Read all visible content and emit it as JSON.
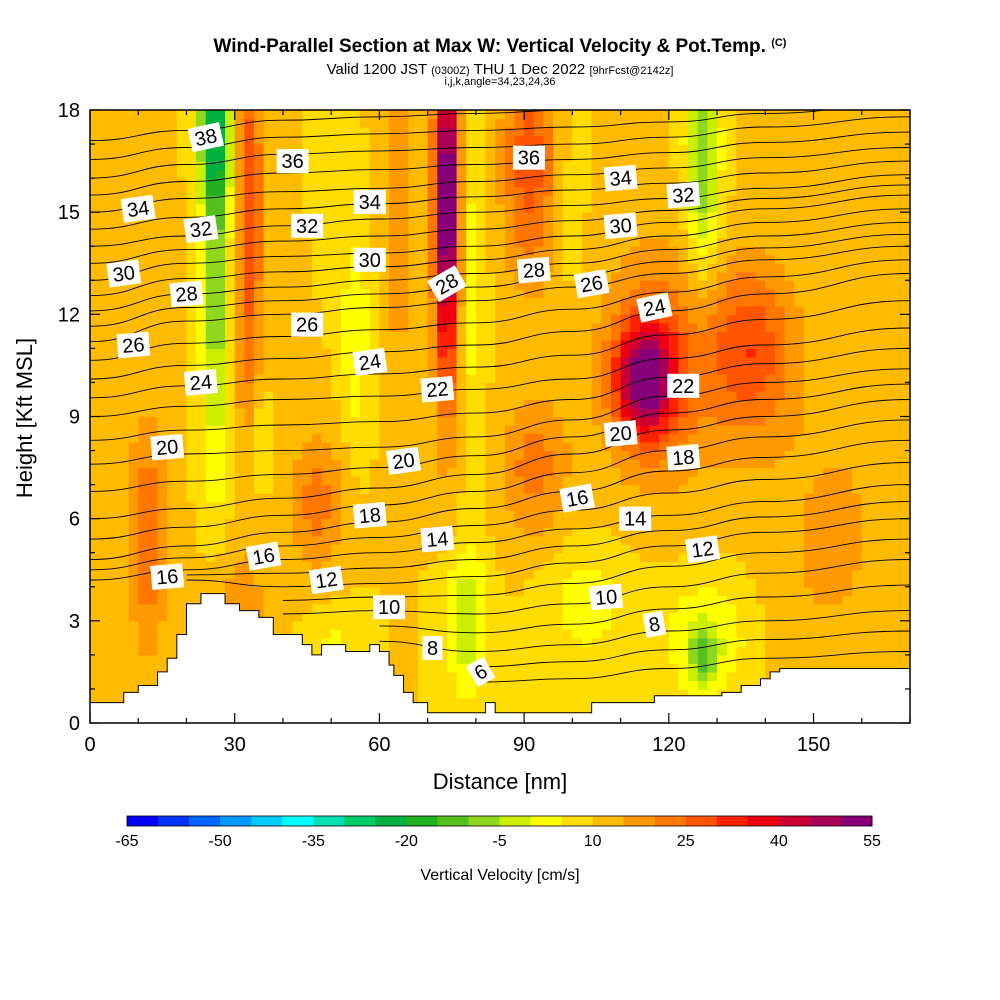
{
  "header": {
    "title": "Wind-Parallel Section at Max W: Vertical Velocity & Pot.Temp.",
    "copyright": "(C)",
    "subtitle_main_a": "Valid 1200 JST",
    "subtitle_small_a": "(0300Z)",
    "subtitle_main_b": "THU 1 Dec 2022",
    "subtitle_small_b": "[9hrFcst@2142z]",
    "indices": "i,j,k,angle=34,23,24,36"
  },
  "chart_data": {
    "type": "heatmap",
    "xlabel": "Distance [nm]",
    "ylabel": "Height [Kft MSL]",
    "xlim": [
      0,
      170
    ],
    "ylim": [
      0,
      18
    ],
    "x_ticks": [
      0,
      30,
      60,
      90,
      120,
      150
    ],
    "y_ticks": [
      0,
      3,
      6,
      9,
      12,
      15,
      18
    ],
    "grid": false,
    "colorbar": {
      "title": "Vertical Velocity [cm/s]",
      "placement": "bottom",
      "min": -65,
      "max": 55,
      "step": 5,
      "tick_labels": [
        "-65",
        "-50",
        "-35",
        "-20",
        "-5",
        "10",
        "25",
        "40",
        "55"
      ],
      "colors": [
        "#0000ff",
        "#0033ff",
        "#0066ff",
        "#0099ff",
        "#00ccff",
        "#00ffff",
        "#00e0b0",
        "#00cc66",
        "#00b040",
        "#20b020",
        "#55c020",
        "#90d820",
        "#ccee00",
        "#ffff00",
        "#ffdd00",
        "#ffbb00",
        "#ff9900",
        "#ff7700",
        "#ff5500",
        "#ff2200",
        "#ee0011",
        "#cc0033",
        "#aa0055",
        "#880077"
      ]
    },
    "background_w": 10,
    "w_features": [
      {
        "x": 26,
        "y": 13.5,
        "sx": 2.0,
        "sy": 4.5,
        "w": -20
      },
      {
        "x": 26,
        "y": 17.5,
        "sx": 2.5,
        "sy": 1.5,
        "w": -25
      },
      {
        "x": 33,
        "y": 15.0,
        "sx": 2.0,
        "sy": 5.0,
        "w": 18
      },
      {
        "x": 35,
        "y": 8.3,
        "sx": 1.5,
        "sy": 1.2,
        "w": -8
      },
      {
        "x": 55,
        "y": 11.5,
        "sx": 2.0,
        "sy": 2.2,
        "w": -10
      },
      {
        "x": 64,
        "y": 15.0,
        "sx": 2.5,
        "sy": 4.0,
        "w": 8
      },
      {
        "x": 74,
        "y": 15.5,
        "sx": 1.8,
        "sy": 3.0,
        "w": 50
      },
      {
        "x": 74,
        "y": 10.5,
        "sx": 2.2,
        "sy": 3.0,
        "w": 8
      },
      {
        "x": 79,
        "y": 13.0,
        "sx": 2.0,
        "sy": 3.5,
        "w": -8
      },
      {
        "x": 91,
        "y": 16.5,
        "sx": 4.0,
        "sy": 2.5,
        "w": 18
      },
      {
        "x": 100,
        "y": 15.5,
        "sx": 2.0,
        "sy": 3.0,
        "w": -3
      },
      {
        "x": 115,
        "y": 10.1,
        "sx": 4.0,
        "sy": 1.1,
        "w": 38
      },
      {
        "x": 118,
        "y": 10.5,
        "sx": 9.0,
        "sy": 2.5,
        "w": 15
      },
      {
        "x": 137,
        "y": 11.0,
        "sx": 6.0,
        "sy": 1.8,
        "w": 18
      },
      {
        "x": 127,
        "y": 16.5,
        "sx": 2.5,
        "sy": 2.5,
        "w": -20
      },
      {
        "x": 12,
        "y": 5.5,
        "sx": 3.0,
        "sy": 2.5,
        "w": 14
      },
      {
        "x": 47,
        "y": 6.5,
        "sx": 4.0,
        "sy": 1.5,
        "w": 12
      },
      {
        "x": 92,
        "y": 7.5,
        "sx": 5.0,
        "sy": 1.5,
        "w": 12
      },
      {
        "x": 78,
        "y": 3.0,
        "sx": 3.0,
        "sy": 1.5,
        "w": -15
      },
      {
        "x": 103,
        "y": 3.5,
        "sx": 6.0,
        "sy": 1.2,
        "w": -8
      },
      {
        "x": 128,
        "y": 2.5,
        "sx": 7.0,
        "sy": 1.3,
        "w": -10
      },
      {
        "x": 127,
        "y": 2.0,
        "sx": 2.0,
        "sy": 0.6,
        "w": -15
      },
      {
        "x": 50,
        "y": 2.3,
        "sx": 4.0,
        "sy": 0.8,
        "w": -6
      },
      {
        "x": 30,
        "y": 3.0,
        "sx": 5.0,
        "sy": 1.5,
        "w": 8
      },
      {
        "x": 160,
        "y": 10.0,
        "sx": 10.0,
        "sy": 8.0,
        "w": 3
      },
      {
        "x": 5,
        "y": 16.0,
        "sx": 6.0,
        "sy": 3.0,
        "w": 5
      },
      {
        "x": 150,
        "y": 5.0,
        "sx": 10.0,
        "sy": 3.0,
        "w": 4
      }
    ],
    "terrain": [
      [
        0,
        0.6
      ],
      [
        7,
        0.6
      ],
      [
        7,
        0.9
      ],
      [
        10,
        0.9
      ],
      [
        10,
        1.1
      ],
      [
        14,
        1.1
      ],
      [
        14,
        1.5
      ],
      [
        16,
        1.5
      ],
      [
        16,
        1.9
      ],
      [
        18,
        1.9
      ],
      [
        18,
        2.6
      ],
      [
        20,
        2.6
      ],
      [
        20,
        3.5
      ],
      [
        23,
        3.5
      ],
      [
        23,
        3.8
      ],
      [
        28,
        3.8
      ],
      [
        28,
        3.5
      ],
      [
        31,
        3.5
      ],
      [
        31,
        3.3
      ],
      [
        35,
        3.3
      ],
      [
        35,
        3.1
      ],
      [
        38,
        3.1
      ],
      [
        38,
        2.6
      ],
      [
        44,
        2.6
      ],
      [
        44,
        2.3
      ],
      [
        46,
        2.3
      ],
      [
        46,
        2.0
      ],
      [
        48,
        2.0
      ],
      [
        48,
        2.3
      ],
      [
        53,
        2.3
      ],
      [
        53,
        2.1
      ],
      [
        58,
        2.1
      ],
      [
        58,
        2.3
      ],
      [
        60,
        2.3
      ],
      [
        60,
        2.1
      ],
      [
        62,
        2.1
      ],
      [
        62,
        1.7
      ],
      [
        63,
        1.7
      ],
      [
        63,
        1.4
      ],
      [
        65,
        1.4
      ],
      [
        65,
        0.9
      ],
      [
        67,
        0.9
      ],
      [
        67,
        0.6
      ],
      [
        70,
        0.6
      ],
      [
        70,
        0.3
      ],
      [
        82,
        0.3
      ],
      [
        82,
        0.6
      ],
      [
        84,
        0.6
      ],
      [
        84,
        0.3
      ],
      [
        104,
        0.3
      ],
      [
        104,
        0.6
      ],
      [
        117,
        0.6
      ],
      [
        117,
        0.8
      ],
      [
        131,
        0.8
      ],
      [
        131,
        0.9
      ],
      [
        135,
        0.9
      ],
      [
        135,
        1.1
      ],
      [
        139,
        1.1
      ],
      [
        139,
        1.3
      ],
      [
        141,
        1.3
      ],
      [
        141,
        1.5
      ],
      [
        143,
        1.5
      ],
      [
        143,
        1.6
      ],
      [
        170,
        1.6
      ]
    ],
    "contour_levels": [
      6,
      7,
      8,
      9,
      10,
      11,
      12,
      13,
      14,
      15,
      16,
      17,
      18,
      19,
      20,
      21,
      22,
      23,
      24,
      25,
      26,
      27,
      28,
      29,
      30,
      31,
      32,
      33,
      34,
      35,
      36,
      37,
      38
    ],
    "theta_anchors_x": [
      0,
      20,
      40,
      60,
      80,
      100,
      120,
      140,
      170
    ],
    "theta_height_ranges": [
      [
        [
          4.2,
          18.0
        ],
        [
          4.2,
          18.0
        ],
        [
          3.2,
          18.0
        ],
        [
          2.4,
          18.0
        ],
        [
          1.0,
          18.0
        ],
        [
          1.0,
          18.0
        ],
        [
          1.2,
          18.0
        ],
        [
          1.6,
          18.0
        ],
        [
          1.9,
          18.0
        ]
      ]
    ],
    "theta_profiles": [
      {
        "t": 6,
        "y": [
          null,
          null,
          null,
          null,
          1.2,
          1.3,
          1.6,
          1.9,
          2.1
        ]
      },
      {
        "t": 8,
        "y": [
          null,
          null,
          null,
          2.4,
          2.1,
          2.3,
          2.7,
          3.0,
          3.3
        ]
      },
      {
        "t": 10,
        "y": [
          null,
          null,
          3.2,
          3.3,
          3.2,
          3.5,
          4.0,
          4.4,
          4.8
        ]
      },
      {
        "t": 12,
        "y": [
          null,
          4.2,
          4.0,
          4.1,
          4.3,
          4.7,
          5.2,
          5.6,
          6.0
        ]
      },
      {
        "t": 14,
        "y": [
          4.2,
          4.5,
          4.8,
          5.0,
          5.3,
          5.7,
          6.1,
          6.5,
          7.0
        ]
      },
      {
        "t": 16,
        "y": [
          4.8,
          5.2,
          5.6,
          5.9,
          6.3,
          6.8,
          7.4,
          7.8,
          8.3
        ]
      },
      {
        "t": 18,
        "y": [
          6.0,
          6.3,
          6.6,
          6.9,
          7.3,
          7.9,
          8.6,
          9.0,
          9.5
        ]
      },
      {
        "t": 20,
        "y": [
          7.6,
          7.9,
          8.0,
          8.1,
          8.4,
          8.9,
          9.6,
          10.0,
          10.4
        ]
      },
      {
        "t": 22,
        "y": [
          9.0,
          9.3,
          9.5,
          9.6,
          9.8,
          10.1,
          10.7,
          11.1,
          11.6
        ]
      },
      {
        "t": 24,
        "y": [
          10.1,
          10.5,
          10.7,
          10.9,
          11.1,
          11.5,
          12.1,
          12.6,
          13.2
        ]
      },
      {
        "t": 26,
        "y": [
          11.2,
          11.8,
          12.0,
          12.2,
          12.4,
          12.8,
          13.2,
          13.6,
          14.0
        ]
      },
      {
        "t": 28,
        "y": [
          12.1,
          12.6,
          12.8,
          13.0,
          13.2,
          13.5,
          13.9,
          14.3,
          14.7
        ]
      },
      {
        "t": 30,
        "y": [
          13.0,
          13.5,
          13.7,
          13.8,
          14.0,
          14.3,
          14.7,
          15.1,
          15.5
        ]
      },
      {
        "t": 32,
        "y": [
          14.0,
          14.3,
          14.6,
          14.8,
          15.0,
          15.2,
          15.4,
          15.7,
          16.1
        ]
      },
      {
        "t": 34,
        "y": [
          15.0,
          15.4,
          15.6,
          15.7,
          15.9,
          16.1,
          16.3,
          16.6,
          16.9
        ]
      },
      {
        "t": 36,
        "y": [
          16.0,
          16.4,
          16.7,
          16.8,
          16.9,
          17.0,
          17.2,
          17.5,
          17.8
        ]
      },
      {
        "t": 38,
        "y": [
          17.1,
          17.4,
          17.7,
          17.8,
          17.9,
          18.0,
          18.1,
          18.3,
          18.6
        ]
      }
    ],
    "contour_labels": [
      {
        "text": "38",
        "x": 24,
        "y": 17.2,
        "angle": -12
      },
      {
        "text": "36",
        "x": 42,
        "y": 16.5,
        "angle": 0
      },
      {
        "text": "36",
        "x": 91,
        "y": 16.6,
        "angle": 0
      },
      {
        "text": "34",
        "x": 10,
        "y": 15.1,
        "angle": -8
      },
      {
        "text": "34",
        "x": 58,
        "y": 15.3,
        "angle": 0
      },
      {
        "text": "34",
        "x": 110,
        "y": 16.0,
        "angle": -5
      },
      {
        "text": "32",
        "x": 23,
        "y": 14.5,
        "angle": -8
      },
      {
        "text": "32",
        "x": 45,
        "y": 14.6,
        "angle": 0
      },
      {
        "text": "32",
        "x": 123,
        "y": 15.5,
        "angle": -5
      },
      {
        "text": "30",
        "x": 7,
        "y": 13.2,
        "angle": -8
      },
      {
        "text": "30",
        "x": 58,
        "y": 13.6,
        "angle": 0
      },
      {
        "text": "30",
        "x": 110,
        "y": 14.6,
        "angle": -5
      },
      {
        "text": "28",
        "x": 20,
        "y": 12.6,
        "angle": -5
      },
      {
        "text": "28",
        "x": 74,
        "y": 12.9,
        "angle": -30
      },
      {
        "text": "28",
        "x": 92,
        "y": 13.3,
        "angle": -5
      },
      {
        "text": "26",
        "x": 9,
        "y": 11.1,
        "angle": -5
      },
      {
        "text": "26",
        "x": 45,
        "y": 11.7,
        "angle": 0
      },
      {
        "text": "26",
        "x": 104,
        "y": 12.9,
        "angle": -10
      },
      {
        "text": "24",
        "x": 23,
        "y": 10.0,
        "angle": -5
      },
      {
        "text": "24",
        "x": 58,
        "y": 10.6,
        "angle": -8
      },
      {
        "text": "24",
        "x": 117,
        "y": 12.2,
        "angle": -12
      },
      {
        "text": "22",
        "x": 72,
        "y": 9.8,
        "angle": -5
      },
      {
        "text": "22",
        "x": 123,
        "y": 9.9,
        "angle": 0
      },
      {
        "text": "20",
        "x": 16,
        "y": 8.1,
        "angle": -5
      },
      {
        "text": "20",
        "x": 65,
        "y": 7.7,
        "angle": -8
      },
      {
        "text": "20",
        "x": 110,
        "y": 8.5,
        "angle": -5
      },
      {
        "text": "18",
        "x": 58,
        "y": 6.1,
        "angle": -5
      },
      {
        "text": "18",
        "x": 123,
        "y": 7.8,
        "angle": -5
      },
      {
        "text": "16",
        "x": 16,
        "y": 4.3,
        "angle": -5
      },
      {
        "text": "16",
        "x": 36,
        "y": 4.9,
        "angle": -10
      },
      {
        "text": "16",
        "x": 101,
        "y": 6.6,
        "angle": -10
      },
      {
        "text": "14",
        "x": 72,
        "y": 5.4,
        "angle": -5
      },
      {
        "text": "14",
        "x": 113,
        "y": 6.0,
        "angle": 0
      },
      {
        "text": "12",
        "x": 49,
        "y": 4.2,
        "angle": -8
      },
      {
        "text": "12",
        "x": 127,
        "y": 5.1,
        "angle": -8
      },
      {
        "text": "10",
        "x": 62,
        "y": 3.4,
        "angle": 0
      },
      {
        "text": "10",
        "x": 107,
        "y": 3.7,
        "angle": -5
      },
      {
        "text": "8",
        "x": 71,
        "y": 2.2,
        "angle": 0
      },
      {
        "text": "8",
        "x": 117,
        "y": 2.9,
        "angle": -10
      },
      {
        "text": "6",
        "x": 81,
        "y": 1.5,
        "angle": -30
      }
    ]
  }
}
